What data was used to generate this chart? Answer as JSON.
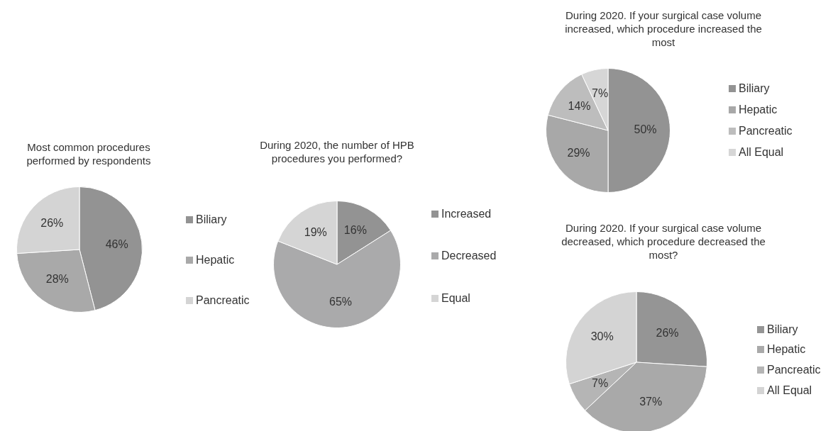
{
  "chart_data": [
    {
      "type": "pie",
      "title": "Most common procedures performed by respondents",
      "categories": [
        "Biliary",
        "Hepatic",
        "Pancreatic"
      ],
      "values": [
        46,
        28,
        26
      ],
      "value_labels": [
        "46%",
        "28%",
        "26%"
      ],
      "colors": [
        "#939393",
        "#a9a9a9",
        "#d4d4d4"
      ],
      "legend": "right"
    },
    {
      "type": "pie",
      "title": "During 2020, the number of HPB procedures you performed?",
      "categories": [
        "Increased",
        "Decreased",
        "Equal"
      ],
      "values": [
        16,
        65,
        19
      ],
      "value_labels": [
        "16%",
        "65%",
        "19%"
      ],
      "colors": [
        "#939393",
        "#aaaaab",
        "#d5d5d5"
      ],
      "legend": "right"
    },
    {
      "type": "pie",
      "title": "During 2020. If your surgical case volume increased, which procedure increased the most",
      "categories": [
        "Biliary",
        "Hepatic",
        "Pancreatic",
        "All Equal"
      ],
      "values": [
        50,
        29,
        14,
        7
      ],
      "value_labels": [
        "50%",
        "29%",
        "14%",
        "7%"
      ],
      "colors": [
        "#939393",
        "#a8a8a8",
        "#bdbdbd",
        "#d6d6d6"
      ],
      "legend": "right"
    },
    {
      "type": "pie",
      "title": "During 2020. If your surgical case volume decreased, which procedure decreased the most?",
      "categories": [
        "Biliary",
        "Hepatic",
        "Pancreatic",
        "All Equal"
      ],
      "values": [
        26,
        37,
        7,
        30
      ],
      "value_labels": [
        "26%",
        "37%",
        "7%",
        "30%"
      ],
      "colors": [
        "#959595",
        "#a9a9a9",
        "#b5b5b5",
        "#d4d4d4"
      ],
      "legend": "right"
    }
  ]
}
